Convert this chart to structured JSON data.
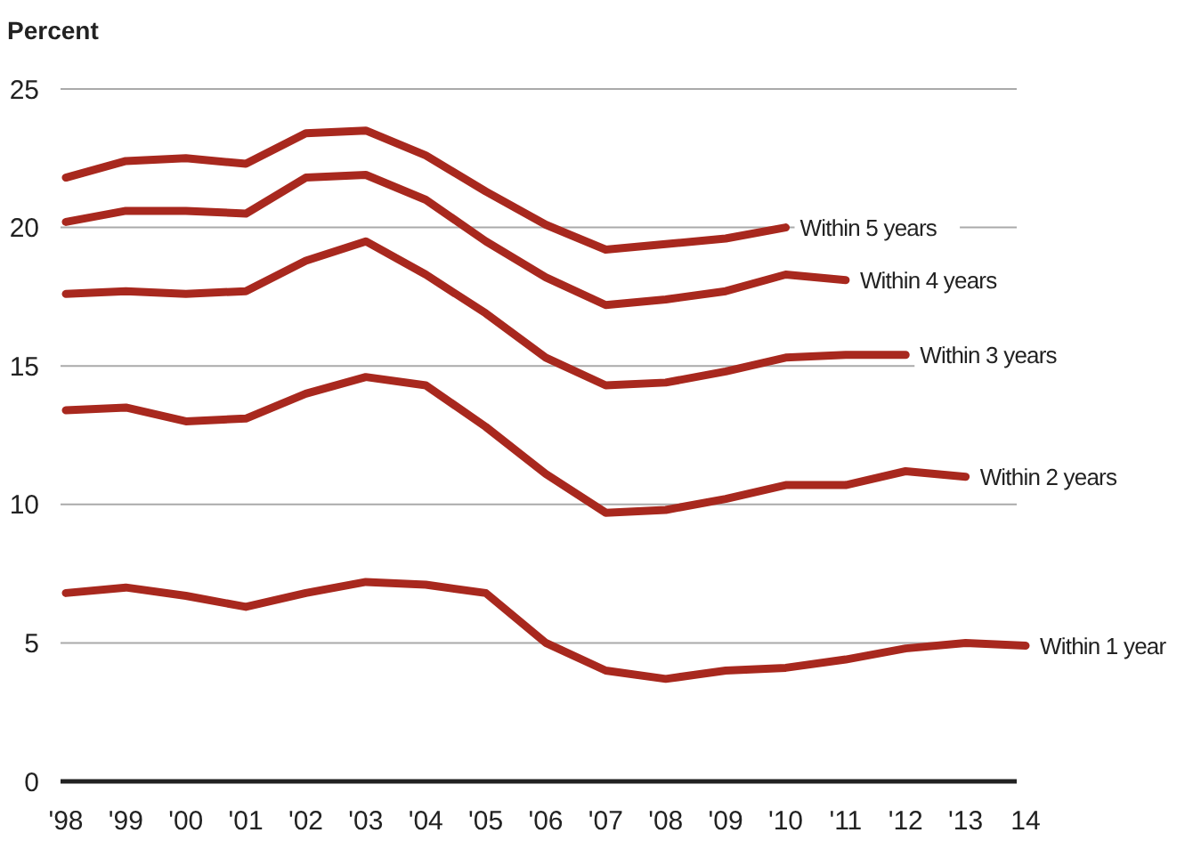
{
  "chart_data": {
    "type": "line",
    "ylabel": "Percent",
    "categories": [
      "'98",
      "'99",
      "'00",
      "'01",
      "'02",
      "'03",
      "'04",
      "'05",
      "'06",
      "'07",
      "'08",
      "'09",
      "'10",
      "'11",
      "'12",
      "'13",
      "14"
    ],
    "ylim": [
      0,
      25
    ],
    "yticks": [
      0,
      5,
      10,
      15,
      20,
      25
    ],
    "grid": "y",
    "series": [
      {
        "name": "Within 5 years",
        "color": "#a8281e",
        "values": [
          21.8,
          22.4,
          22.5,
          22.3,
          23.4,
          23.5,
          22.6,
          21.3,
          20.1,
          19.2,
          19.4,
          19.6,
          20.0,
          null,
          null,
          null,
          null
        ]
      },
      {
        "name": "Within 4 years",
        "color": "#a8281e",
        "values": [
          20.2,
          20.6,
          20.6,
          20.5,
          21.8,
          21.9,
          21.0,
          19.5,
          18.2,
          17.2,
          17.4,
          17.7,
          18.3,
          18.1,
          null,
          null,
          null
        ]
      },
      {
        "name": "Within 3 years",
        "color": "#a8281e",
        "values": [
          17.6,
          17.7,
          17.6,
          17.7,
          18.8,
          19.5,
          18.3,
          16.9,
          15.3,
          14.3,
          14.4,
          14.8,
          15.3,
          15.4,
          15.4,
          null,
          null
        ]
      },
      {
        "name": "Within 2 years",
        "color": "#a8281e",
        "values": [
          13.4,
          13.5,
          13.0,
          13.1,
          14.0,
          14.6,
          14.3,
          12.8,
          11.1,
          9.7,
          9.8,
          10.2,
          10.7,
          10.7,
          11.2,
          11.0,
          null
        ]
      },
      {
        "name": "Within 1 year",
        "color": "#a8281e",
        "values": [
          6.8,
          7.0,
          6.7,
          6.3,
          6.8,
          7.2,
          7.1,
          6.8,
          5.0,
          4.0,
          3.7,
          4.0,
          4.1,
          4.4,
          4.8,
          5.0,
          4.9
        ]
      }
    ]
  }
}
